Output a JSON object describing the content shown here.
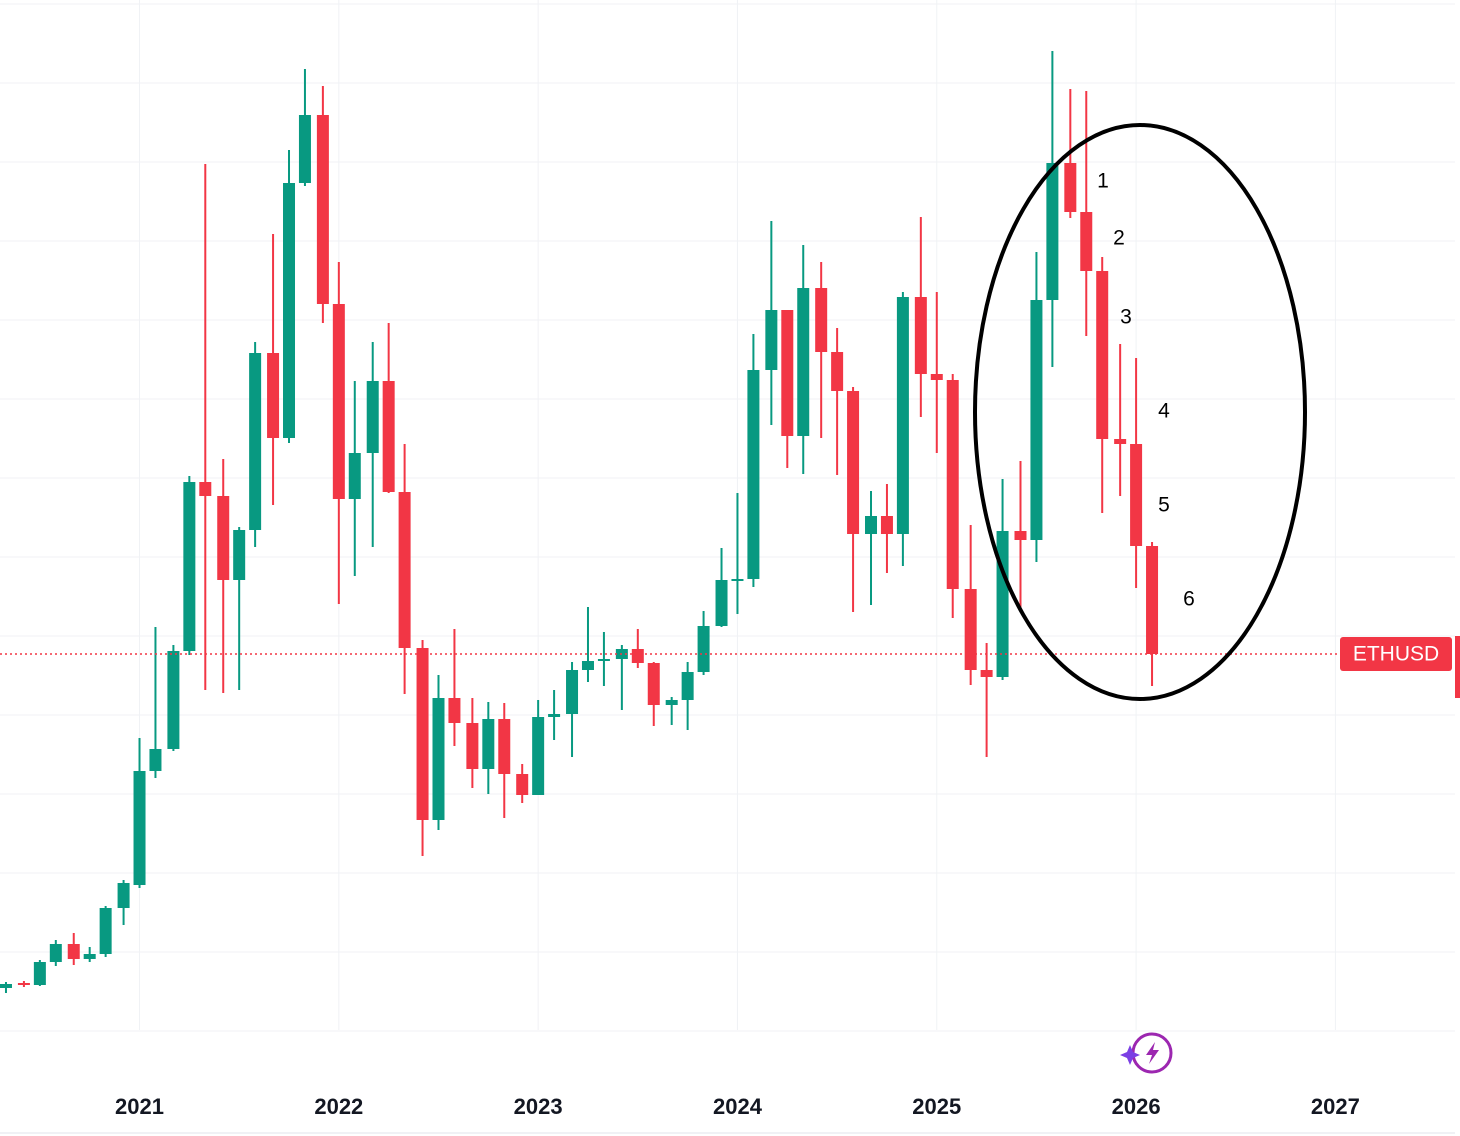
{
  "chart_data": {
    "type": "candlestick",
    "xlim": [
      2020.3,
      2027.6
    ],
    "xticks": [
      2021,
      2022,
      2023,
      2024,
      2025,
      2026,
      2027
    ],
    "ylim": [
      0,
      1080
    ],
    "grid": true,
    "up_color": "#089981",
    "down_color": "#f23645",
    "series": [
      {
        "name": "ETHUSD",
        "x": [
          2020.33,
          2020.42,
          2020.5,
          2020.58,
          2020.67,
          2020.75,
          2020.83,
          2020.92,
          2021,
          2021.08,
          2021.17,
          2021.25,
          2021.33,
          2021.42,
          2021.5,
          2021.58,
          2021.67,
          2021.75,
          2021.83,
          2021.92,
          2022,
          2022.08,
          2022.17,
          2022.25,
          2022.33,
          2022.42,
          2022.5,
          2022.58,
          2022.67,
          2022.75,
          2022.83,
          2022.92,
          2023,
          2023.08,
          2023.17,
          2023.25,
          2023.33,
          2023.42,
          2023.5,
          2023.58,
          2023.67,
          2023.75,
          2023.83,
          2023.92,
          2024,
          2024.08,
          2024.17,
          2024.25,
          2024.33,
          2024.42,
          2024.5,
          2024.58,
          2024.67,
          2024.75,
          2024.83,
          2024.92,
          2025,
          2025.08,
          2025.17,
          2025.25,
          2025.33,
          2025.42,
          2025.5,
          2025.58,
          2025.67,
          2025.75,
          2025.83,
          2025.92,
          2026,
          2026.08
        ],
        "open": [
          92,
          97,
          95,
          118,
          136,
          121,
          126,
          172,
          195,
          309,
          331,
          429,
          598,
          584,
          500,
          550,
          727,
          642,
          897,
          965,
          776,
          581,
          627,
          699,
          588,
          432,
          260,
          382,
          357,
          311,
          361,
          306,
          285,
          363,
          366,
          410,
          419,
          421,
          431,
          417,
          375,
          380,
          408,
          454,
          500,
          501,
          710,
          770,
          644,
          792,
          728,
          689,
          546,
          564,
          546,
          783,
          706,
          700,
          491,
          410,
          403,
          549,
          540,
          780,
          917,
          868,
          809,
          641,
          636,
          534
        ],
        "high": [
          98,
          99,
          120,
          140,
          147,
          133,
          174,
          200,
          342,
          453,
          435,
          604,
          916,
          621,
          553,
          738,
          846,
          930,
          1011,
          994,
          818,
          699,
          738,
          757,
          636,
          440,
          405,
          451,
          382,
          378,
          377,
          316,
          380,
          390,
          418,
          473,
          448,
          435,
          451,
          418,
          383,
          418,
          469,
          532,
          587,
          746,
          859,
          770,
          835,
          818,
          752,
          693,
          589,
          596,
          788,
          863,
          788,
          706,
          555,
          437,
          601,
          619,
          828,
          1029,
          991,
          989,
          823,
          736,
          722,
          538
        ],
        "low": [
          87,
          93,
          94,
          114,
          115,
          118,
          123,
          155,
          192,
          302,
          329,
          425,
          390,
          387,
          390,
          533,
          575,
          637,
          894,
          757,
          476,
          504,
          533,
          587,
          386,
          224,
          250,
          334,
          292,
          286,
          262,
          277,
          285,
          340,
          323,
          398,
          394,
          370,
          412,
          354,
          355,
          350,
          405,
          453,
          466,
          493,
          655,
          612,
          606,
          642,
          605,
          468,
          475,
          507,
          514,
          663,
          627,
          462,
          395,
          323,
          400,
          471,
          518,
          713,
          862,
          744,
          567,
          584,
          492,
          394
        ],
        "close": [
          96,
          95,
          118,
          136,
          121,
          126,
          172,
          197,
          309,
          331,
          429,
          598,
          584,
          500,
          550,
          727,
          642,
          897,
          965,
          776,
          581,
          627,
          699,
          588,
          432,
          260,
          382,
          357,
          311,
          361,
          306,
          285,
          363,
          366,
          410,
          419,
          421,
          431,
          417,
          375,
          380,
          408,
          454,
          500,
          501,
          710,
          770,
          644,
          792,
          728,
          689,
          546,
          564,
          546,
          783,
          706,
          700,
          491,
          410,
          403,
          549,
          540,
          780,
          917,
          868,
          809,
          641,
          636,
          534,
          426
        ]
      }
    ],
    "annotations": [
      "1",
      "2",
      "3",
      "4",
      "5",
      "6"
    ]
  }
}
